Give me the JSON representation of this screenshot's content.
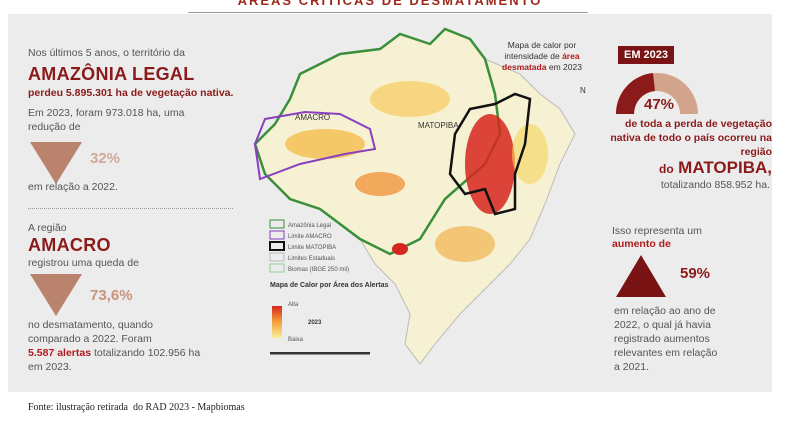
{
  "header": {
    "title": "ÁREAS CRÍTICAS DE DESMATAMENTO"
  },
  "left": {
    "amazonia": {
      "intro": "Nos últimos 5 anos, o território da",
      "region": "AMAZÔNIA LEGAL",
      "loss": "perdeu 5.895.301 ha de vegetação nativa.",
      "text": "Em 2023, foram 973.018 ha, uma redução de",
      "percent": "32%",
      "after": "em relação a 2022."
    },
    "amacro": {
      "intro": "A região",
      "region": "AMACRO",
      "text": "registrou uma queda de",
      "percent": "73,6%",
      "after": "no desmatamento, quando comparado a 2022. Foram",
      "alerts": "5.587 alertas",
      "total": "totalizando 102.956 ha em 2023."
    }
  },
  "map": {
    "labels": {
      "amacro": "AMACRO",
      "matopiba": "MATOPIBA",
      "north": "N"
    },
    "callout": {
      "before": "Mapa de calor por intensidade de",
      "highlight": "área desmatada",
      "after": "em 2023"
    },
    "legend": {
      "items": [
        "Amazônia Legal",
        "Limite AMACRO",
        "Limite MATOPIBA",
        "Limites Estaduais",
        "Biomas (IBGE 250 mil)"
      ],
      "heat_title": "Mapa de Calor por Área dos Alertas",
      "high": "Alta",
      "year": "2023",
      "low": "Baixa"
    }
  },
  "right": {
    "badge": "EM 2023",
    "percent": "47%",
    "text": "de toda a perda de vegetação nativa de todo o país ocorreu na região",
    "region_prefix": "do",
    "region": "MATOPIBA,",
    "total": "totalizando 858.952 ha.",
    "intro": "Isso representa um",
    "increase": "aumento de",
    "increase_percent": "59%",
    "after": "em relação ao ano de 2022, o qual já havia registrado aumentos relevantes em relação a 2021."
  },
  "footer": "Fonte: ilustração retirada  do RAD 2023 - Mapbiomas"
}
